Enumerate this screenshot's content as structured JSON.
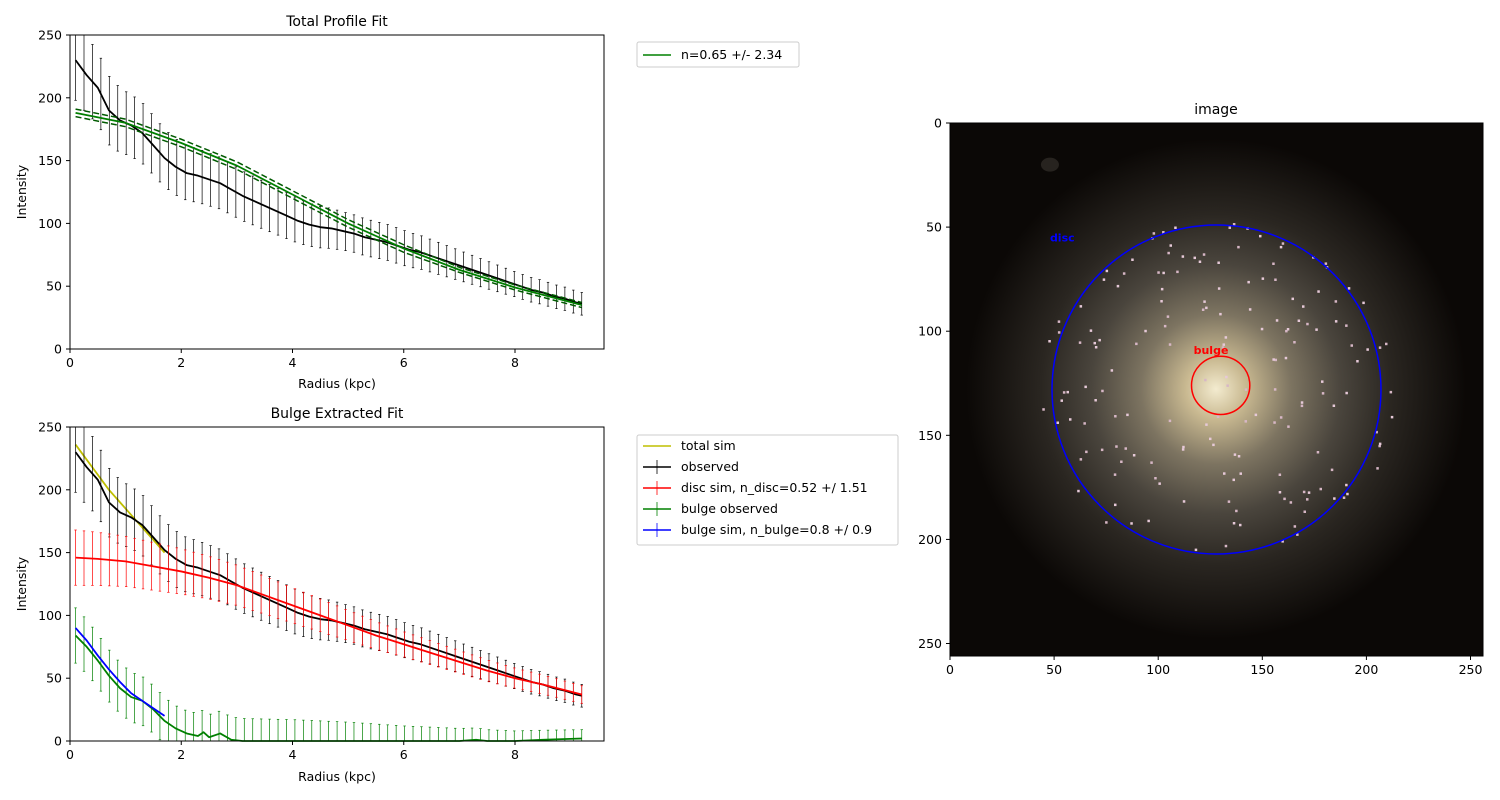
{
  "chart_data": [
    {
      "type": "line",
      "title": "Total Profile Fit",
      "xlabel": "Radius (kpc)",
      "ylabel": "Intensity",
      "xlim": [
        0,
        9.6
      ],
      "ylim": [
        0,
        250
      ],
      "xticks": [
        0,
        2,
        4,
        6,
        8
      ],
      "yticks": [
        0,
        50,
        100,
        150,
        200,
        250
      ],
      "legend": {
        "placement": "outside-top-right",
        "entries": [
          {
            "label": "n=0.65 +/- 2.34",
            "color": "#008000",
            "style": "line"
          }
        ]
      },
      "x_range": [
        0.1,
        9.2
      ],
      "series": [
        {
          "role": "observed",
          "color": "#000000",
          "error_bars": true,
          "points": [
            [
              0.1,
              230
            ],
            [
              0.3,
              218
            ],
            [
              0.5,
              208
            ],
            [
              0.7,
              190
            ],
            [
              0.9,
              182
            ],
            [
              1.1,
              178
            ],
            [
              1.3,
              172
            ],
            [
              1.5,
              162
            ],
            [
              1.7,
              152
            ],
            [
              1.9,
              145
            ],
            [
              2.1,
              140
            ],
            [
              2.3,
              138
            ],
            [
              2.5,
              135
            ],
            [
              2.7,
              132
            ],
            [
              2.9,
              127
            ],
            [
              3.1,
              122
            ],
            [
              3.3,
              118
            ],
            [
              3.5,
              114
            ],
            [
              3.7,
              110
            ],
            [
              3.9,
              106
            ],
            [
              4.1,
              102
            ],
            [
              4.3,
              99
            ],
            [
              4.5,
              97
            ],
            [
              4.7,
              96
            ],
            [
              4.9,
              94
            ],
            [
              5.1,
              92
            ],
            [
              5.3,
              89
            ],
            [
              5.5,
              87
            ],
            [
              5.7,
              85
            ],
            [
              5.9,
              82
            ],
            [
              6.1,
              79
            ],
            [
              6.3,
              77
            ],
            [
              6.5,
              74
            ],
            [
              6.7,
              71
            ],
            [
              6.9,
              68
            ],
            [
              7.1,
              65
            ],
            [
              7.3,
              62
            ],
            [
              7.5,
              59
            ],
            [
              7.7,
              56
            ],
            [
              7.9,
              53
            ],
            [
              8.1,
              50
            ],
            [
              8.3,
              47
            ],
            [
              8.5,
              45
            ],
            [
              8.7,
              42
            ],
            [
              8.9,
              40
            ],
            [
              9.1,
              37
            ],
            [
              9.2,
              36
            ]
          ],
          "error": [
            [
              0.1,
              32
            ],
            [
              1,
              25
            ],
            [
              2,
              22
            ],
            [
              3,
              20
            ],
            [
              4,
              18
            ],
            [
              5,
              15
            ],
            [
              6,
              14
            ],
            [
              7,
              12
            ],
            [
              8,
              10
            ],
            [
              9.2,
              9
            ]
          ]
        },
        {
          "role": "fit",
          "color": "#008000",
          "points": [
            [
              0.1,
              188
            ],
            [
              1,
              180
            ],
            [
              2,
              164
            ],
            [
              3,
              146
            ],
            [
              4,
              123
            ],
            [
              5,
              100
            ],
            [
              6,
              80
            ],
            [
              7,
              63
            ],
            [
              8,
              49
            ],
            [
              9.2,
              35
            ]
          ]
        },
        {
          "role": "fit_upper",
          "color": "#008000",
          "dashed": true,
          "points": [
            [
              0.1,
              191
            ],
            [
              1,
              183
            ],
            [
              2,
              167
            ],
            [
              3,
              149
            ],
            [
              4,
              126
            ],
            [
              5,
              103
            ],
            [
              6,
              83
            ],
            [
              7,
              65
            ],
            [
              8,
              51
            ],
            [
              9.2,
              37
            ]
          ]
        },
        {
          "role": "fit_lower",
          "color": "#008000",
          "dashed": true,
          "points": [
            [
              0.1,
              185
            ],
            [
              1,
              177
            ],
            [
              2,
              161
            ],
            [
              3,
              143
            ],
            [
              4,
              120
            ],
            [
              5,
              97
            ],
            [
              6,
              77
            ],
            [
              7,
              61
            ],
            [
              8,
              47
            ],
            [
              9.2,
              33
            ]
          ]
        }
      ]
    },
    {
      "type": "line",
      "title": "Bulge Extracted Fit",
      "xlabel": "Radius (kpc)",
      "ylabel": "Intensity",
      "xlim": [
        0,
        9.6
      ],
      "ylim": [
        0,
        250
      ],
      "xticks": [
        0,
        2,
        4,
        6,
        8
      ],
      "yticks": [
        0,
        50,
        100,
        150,
        200,
        250
      ],
      "legend": {
        "placement": "outside-right",
        "entries": [
          {
            "label": "total sim",
            "color": "#bfbf00",
            "style": "line"
          },
          {
            "label": "observed",
            "color": "#000000",
            "style": "errorbar"
          },
          {
            "label": "disc sim, n_disc=0.52 +/ 1.51",
            "color": "#ff0000",
            "style": "errorbar"
          },
          {
            "label": "bulge observed",
            "color": "#008000",
            "style": "errorbar"
          },
          {
            "label": "bulge sim, n_bulge=0.8 +/ 0.9",
            "color": "#0000ff",
            "style": "errorbar"
          }
        ]
      },
      "series": [
        {
          "role": "total sim",
          "color": "#bfbf00",
          "points": [
            [
              0.1,
              236
            ],
            [
              0.3,
              224
            ],
            [
              0.5,
              212
            ],
            [
              0.7,
              200
            ],
            [
              0.9,
              190
            ],
            [
              1.1,
              180
            ],
            [
              1.3,
              170
            ],
            [
              1.5,
              160
            ],
            [
              1.7,
              150
            ]
          ]
        },
        {
          "role": "observed",
          "color": "#000000",
          "error_bars": true,
          "points": [
            [
              0.1,
              230
            ],
            [
              0.3,
              218
            ],
            [
              0.5,
              208
            ],
            [
              0.7,
              190
            ],
            [
              0.9,
              182
            ],
            [
              1.1,
              178
            ],
            [
              1.3,
              172
            ],
            [
              1.5,
              162
            ],
            [
              1.7,
              152
            ],
            [
              1.9,
              145
            ],
            [
              2.1,
              140
            ],
            [
              2.3,
              138
            ],
            [
              2.5,
              135
            ],
            [
              2.7,
              132
            ],
            [
              2.9,
              127
            ],
            [
              3.1,
              122
            ],
            [
              3.3,
              118
            ],
            [
              3.5,
              114
            ],
            [
              3.7,
              110
            ],
            [
              3.9,
              106
            ],
            [
              4.1,
              102
            ],
            [
              4.3,
              99
            ],
            [
              4.5,
              97
            ],
            [
              4.7,
              96
            ],
            [
              4.9,
              94
            ],
            [
              5.1,
              92
            ],
            [
              5.3,
              89
            ],
            [
              5.5,
              87
            ],
            [
              5.7,
              85
            ],
            [
              5.9,
              82
            ],
            [
              6.1,
              79
            ],
            [
              6.3,
              77
            ],
            [
              6.5,
              74
            ],
            [
              6.7,
              71
            ],
            [
              6.9,
              68
            ],
            [
              7.1,
              65
            ],
            [
              7.3,
              62
            ],
            [
              7.5,
              59
            ],
            [
              7.7,
              56
            ],
            [
              7.9,
              53
            ],
            [
              8.1,
              50
            ],
            [
              8.3,
              47
            ],
            [
              8.5,
              45
            ],
            [
              8.7,
              42
            ],
            [
              8.9,
              40
            ],
            [
              9.1,
              37
            ],
            [
              9.2,
              36
            ]
          ],
          "error": [
            [
              0.1,
              32
            ],
            [
              1,
              25
            ],
            [
              2,
              22
            ],
            [
              3,
              20
            ],
            [
              4,
              18
            ],
            [
              5,
              15
            ],
            [
              6,
              14
            ],
            [
              7,
              12
            ],
            [
              8,
              10
            ],
            [
              9.2,
              9
            ]
          ]
        },
        {
          "role": "disc sim",
          "color": "#ff0000",
          "error_bars": true,
          "points": [
            [
              0.1,
              146
            ],
            [
              0.5,
              145
            ],
            [
              1,
              143
            ],
            [
              1.5,
              139
            ],
            [
              2,
              135
            ],
            [
              2.5,
              130
            ],
            [
              3,
              124
            ],
            [
              3.5,
              116
            ],
            [
              4,
              108
            ],
            [
              4.5,
              100
            ],
            [
              5,
              92
            ],
            [
              5.5,
              84
            ],
            [
              6,
              77
            ],
            [
              6.5,
              70
            ],
            [
              7,
              63
            ],
            [
              7.5,
              56
            ],
            [
              8,
              50
            ],
            [
              8.5,
              45
            ],
            [
              9.2,
              37
            ]
          ],
          "error": [
            [
              0.1,
              22
            ],
            [
              1,
              20
            ],
            [
              2,
              18
            ],
            [
              3,
              16
            ],
            [
              4,
              14
            ],
            [
              5,
              12
            ],
            [
              6,
              10
            ],
            [
              7,
              9
            ],
            [
              8,
              8
            ],
            [
              9.2,
              7
            ]
          ]
        },
        {
          "role": "bulge observed",
          "color": "#008000",
          "error_bars": true,
          "points": [
            [
              0.1,
              84
            ],
            [
              0.3,
              75
            ],
            [
              0.5,
              64
            ],
            [
              0.7,
              52
            ],
            [
              0.9,
              42
            ],
            [
              1.1,
              35
            ],
            [
              1.3,
              32
            ],
            [
              1.5,
              25
            ],
            [
              1.7,
              16
            ],
            [
              1.9,
              10
            ],
            [
              2.1,
              6
            ],
            [
              2.3,
              4
            ],
            [
              2.4,
              7
            ],
            [
              2.5,
              3
            ],
            [
              2.7,
              6
            ],
            [
              2.9,
              1
            ],
            [
              3.1,
              0
            ],
            [
              4,
              0
            ],
            [
              5,
              0
            ],
            [
              6,
              0
            ],
            [
              7,
              0
            ],
            [
              7.3,
              1
            ],
            [
              7.5,
              0
            ],
            [
              8,
              0
            ],
            [
              8.5,
              1
            ],
            [
              9.2,
              2
            ]
          ],
          "error": [
            [
              0.1,
              22
            ],
            [
              1,
              20
            ],
            [
              2,
              18
            ],
            [
              3,
              18
            ],
            [
              4,
              17
            ],
            [
              5,
              15
            ],
            [
              6,
              12
            ],
            [
              7,
              10
            ],
            [
              8,
              8
            ],
            [
              9.2,
              7
            ]
          ]
        },
        {
          "role": "bulge sim",
          "color": "#0000ff",
          "error_bars": false,
          "points": [
            [
              0.1,
              90
            ],
            [
              0.3,
              80
            ],
            [
              0.5,
              68
            ],
            [
              0.7,
              57
            ],
            [
              0.9,
              47
            ],
            [
              1.1,
              38
            ],
            [
              1.3,
              32
            ],
            [
              1.5,
              26
            ],
            [
              1.7,
              20
            ]
          ]
        }
      ]
    },
    {
      "type": "image",
      "title": "image",
      "xlim": [
        0,
        256
      ],
      "ylim": [
        256,
        0
      ],
      "xticks": [
        0,
        50,
        100,
        150,
        200,
        250
      ],
      "yticks": [
        0,
        50,
        100,
        150,
        200,
        250
      ],
      "annotations": [
        {
          "label": "disc",
          "color": "#0000ff",
          "x": 48,
          "y": 57
        },
        {
          "label": "bulge",
          "color": "#ff0000",
          "x": 117,
          "y": 111
        }
      ],
      "circles": [
        {
          "name": "disc",
          "color": "#0000ff",
          "cx": 128,
          "cy": 128,
          "r": 79
        },
        {
          "name": "bulge",
          "color": "#ff0000",
          "cx": 130,
          "cy": 126,
          "r": 14
        }
      ]
    }
  ]
}
